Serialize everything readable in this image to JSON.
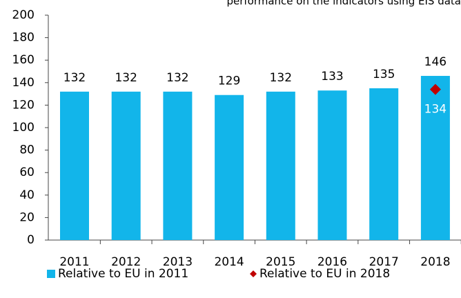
{
  "chart_data": {
    "type": "bar",
    "subtitle": "performance on the indicators using EIS data",
    "categories": [
      "2011",
      "2012",
      "2013",
      "2014",
      "2015",
      "2016",
      "2017",
      "2018"
    ],
    "series": [
      {
        "name": "Relative to EU in 2011",
        "color": "#12b5ea",
        "type": "bar",
        "values": [
          132,
          132,
          132,
          129,
          132,
          133,
          135,
          146
        ]
      },
      {
        "name": "Relative to EU in 2018",
        "color": "#c00000",
        "type": "scatter",
        "values": [
          null,
          null,
          null,
          null,
          null,
          null,
          null,
          134
        ]
      }
    ],
    "ylim": [
      0,
      200
    ],
    "yticks": [
      0,
      20,
      40,
      60,
      80,
      100,
      120,
      140,
      160,
      180,
      200
    ]
  }
}
